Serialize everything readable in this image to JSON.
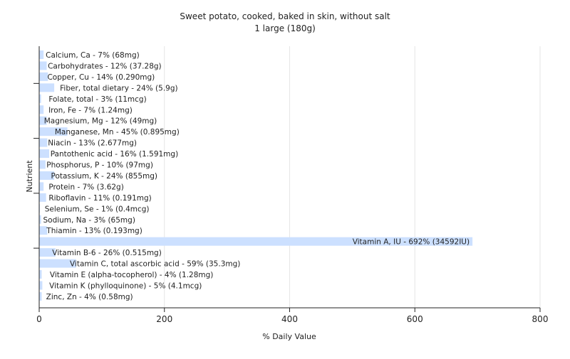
{
  "chart_data": {
    "type": "bar",
    "orientation": "horizontal",
    "title": "Sweet potato, cooked, baked in skin, without salt",
    "subtitle": "1 large (180g)",
    "xlabel": "% Daily Value",
    "ylabel": "Nutrient",
    "xlim": [
      0,
      800
    ],
    "xticks": [
      0,
      200,
      400,
      600,
      800
    ],
    "grid": true,
    "bar_color": "#cce0ff",
    "grid_color": "#e6e6e6",
    "categories": [
      "Calcium, Ca",
      "Carbohydrates",
      "Copper, Cu",
      "Fiber, total dietary",
      "Folate, total",
      "Iron, Fe",
      "Magnesium, Mg",
      "Manganese, Mn",
      "Niacin",
      "Pantothenic acid",
      "Phosphorus, P",
      "Potassium, K",
      "Protein",
      "Riboflavin",
      "Selenium, Se",
      "Sodium, Na",
      "Thiamin",
      "Vitamin A, IU",
      "Vitamin B-6",
      "Vitamin C, total ascorbic acid",
      "Vitamin E (alpha-tocopherol)",
      "Vitamin K (phylloquinone)",
      "Zinc, Zn"
    ],
    "values": [
      7,
      12,
      14,
      24,
      3,
      7,
      12,
      45,
      13,
      16,
      10,
      24,
      7,
      11,
      1,
      3,
      13,
      692,
      26,
      59,
      4,
      5,
      4
    ],
    "labels": [
      "Calcium, Ca - 7% (68mg)",
      "Carbohydrates - 12% (37.28g)",
      "Copper, Cu - 14% (0.290mg)",
      "Fiber, total dietary - 24% (5.9g)",
      "Folate, total - 3% (11mcg)",
      "Iron, Fe - 7% (1.24mg)",
      "Magnesium, Mg - 12% (49mg)",
      "Manganese, Mn - 45% (0.895mg)",
      "Niacin - 13% (2.677mg)",
      "Pantothenic acid - 16% (1.591mg)",
      "Phosphorus, P - 10% (97mg)",
      "Potassium, K - 24% (855mg)",
      "Protein - 7% (3.62g)",
      "Riboflavin - 11% (0.191mg)",
      "Selenium, Se - 1% (0.4mcg)",
      "Sodium, Na - 3% (65mg)",
      "Thiamin - 13% (0.193mg)",
      "Vitamin A, IU - 692% (34592IU)",
      "Vitamin B-6 - 26% (0.515mg)",
      "Vitamin C, total ascorbic acid - 59% (35.3mg)",
      "Vitamin E (alpha-tocopherol) - 4% (1.28mg)",
      "Vitamin K (phylloquinone) - 5% (4.1mcg)",
      "Zinc, Zn - 4% (0.58mg)"
    ]
  }
}
